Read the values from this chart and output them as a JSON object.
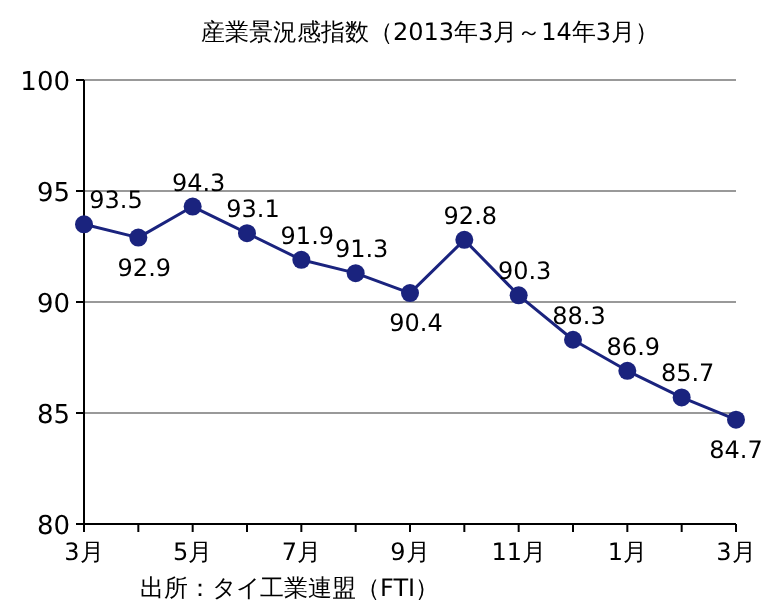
{
  "chart_data": {
    "type": "line",
    "title": "産業景況感指数（2013年3月～14年3月）",
    "categories": [
      "3月",
      null,
      "5月",
      null,
      "7月",
      null,
      "9月",
      null,
      "11月",
      null,
      "1月",
      null,
      "3月"
    ],
    "series": [
      {
        "color": "#1a237e",
        "values": [
          93.5,
          92.9,
          94.3,
          93.1,
          91.9,
          91.3,
          90.4,
          92.8,
          90.3,
          88.3,
          86.9,
          85.7,
          84.7
        ]
      }
    ],
    "ylim": [
      80,
      100
    ],
    "yticks": [
      80,
      85,
      90,
      95,
      100
    ],
    "grid": "y",
    "marker": "circle",
    "line_style": "solid",
    "data_labels": true,
    "annotations": [
      "出所：タイ工業連盟（FTI）"
    ]
  }
}
